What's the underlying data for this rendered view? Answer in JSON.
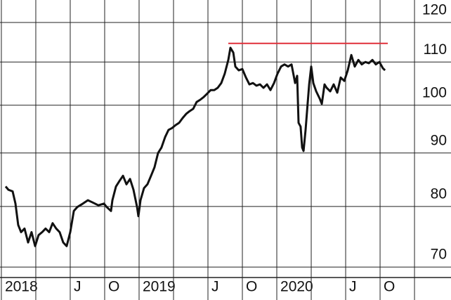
{
  "chart_data": {
    "type": "line",
    "log_scale": true,
    "grid": true,
    "xlim": [
      2017.99,
      2021.265
    ],
    "ylim": [
      68.4,
      126.1
    ],
    "yticks": [
      70,
      80,
      90,
      100,
      110,
      120
    ],
    "xticks": [
      {
        "value": 2018,
        "label": "2018"
      },
      {
        "value": 2018.25,
        "label": null
      },
      {
        "value": 2018.5,
        "label": "J"
      },
      {
        "value": 2018.75,
        "label": "O"
      },
      {
        "value": 2019,
        "label": "2019"
      },
      {
        "value": 2019.25,
        "label": null
      },
      {
        "value": 2019.5,
        "label": "J"
      },
      {
        "value": 2019.75,
        "label": "O"
      },
      {
        "value": 2020,
        "label": "2020"
      },
      {
        "value": 2020.25,
        "label": null
      },
      {
        "value": 2020.5,
        "label": "J"
      },
      {
        "value": 2020.75,
        "label": "O"
      },
      {
        "value": 2021,
        "label": null
      }
    ],
    "series": [
      {
        "color": "#111111",
        "x": [
          2018.031,
          2018.051,
          2018.082,
          2018.102,
          2018.122,
          2018.143,
          2018.168,
          2018.194,
          2018.219,
          2018.245,
          2018.27,
          2018.296,
          2018.321,
          2018.347,
          2018.372,
          2018.398,
          2018.423,
          2018.449,
          2018.474,
          2018.5,
          2018.526,
          2018.551,
          2018.592,
          2018.628,
          2018.663,
          2018.704,
          2018.745,
          2018.765,
          2018.796,
          2018.806,
          2018.832,
          2018.857,
          2018.883,
          2018.908,
          2018.934,
          2018.959,
          2018.985,
          2018.995,
          2019.01,
          2019.036,
          2019.061,
          2019.087,
          2019.112,
          2019.138,
          2019.163,
          2019.189,
          2019.214,
          2019.24,
          2019.265,
          2019.291,
          2019.316,
          2019.342,
          2019.367,
          2019.393,
          2019.418,
          2019.444,
          2019.469,
          2019.495,
          2019.52,
          2019.546,
          2019.571,
          2019.597,
          2019.622,
          2019.648,
          2019.663,
          2019.684,
          2019.699,
          2019.724,
          2019.75,
          2019.776,
          2019.801,
          2019.827,
          2019.852,
          2019.878,
          2019.903,
          2019.929,
          2019.954,
          2019.98,
          2020.005,
          2020.031,
          2020.056,
          2020.082,
          2020.107,
          2020.133,
          2020.148,
          2020.158,
          2020.173,
          2020.184,
          2020.194,
          2020.209,
          2020.224,
          2020.235,
          2020.25,
          2020.265,
          2020.286,
          2020.311,
          2020.327,
          2020.347,
          2020.362,
          2020.388,
          2020.413,
          2020.439,
          2020.464,
          2020.49,
          2020.515,
          2020.541,
          2020.566,
          2020.592,
          2020.617,
          2020.643,
          2020.668,
          2020.694,
          2020.719,
          2020.745,
          2020.77,
          2020.786
        ],
        "values": [
          83.6,
          83.0,
          82.7,
          80.5,
          76.8,
          75.6,
          76.2,
          73.9,
          75.6,
          73.3,
          75.1,
          75.6,
          76.2,
          75.6,
          77.1,
          76.2,
          75.6,
          73.9,
          73.3,
          75.6,
          79.2,
          79.9,
          80.5,
          81.1,
          80.7,
          80.2,
          80.5,
          79.9,
          79.2,
          81.1,
          83.6,
          84.6,
          85.6,
          84.0,
          85.0,
          83.0,
          79.9,
          78.3,
          81.1,
          83.3,
          84.0,
          85.6,
          87.2,
          90.0,
          91.1,
          93.2,
          94.7,
          95.1,
          95.7,
          96.2,
          97.2,
          98.1,
          98.7,
          99.2,
          100.7,
          101.2,
          101.8,
          102.6,
          103.4,
          103.4,
          103.9,
          105.0,
          107.2,
          110.5,
          113.5,
          112.3,
          108.9,
          108.0,
          108.3,
          106.3,
          104.7,
          105.0,
          104.4,
          104.7,
          103.9,
          104.7,
          103.4,
          105.0,
          107.2,
          108.9,
          109.4,
          108.9,
          109.4,
          105.0,
          106.7,
          96.2,
          95.4,
          91.1,
          90.4,
          94.7,
          100.3,
          104.7,
          108.9,
          105.0,
          103.1,
          101.5,
          100.3,
          104.7,
          103.9,
          103.1,
          104.7,
          102.8,
          106.3,
          105.5,
          108.0,
          111.7,
          108.9,
          110.5,
          109.4,
          110.0,
          109.7,
          110.5,
          109.4,
          110.0,
          108.5,
          108.0
        ]
      }
    ],
    "reference_line": {
      "x": [
        2019.648,
        2020.806
      ],
      "value": 114.6,
      "color": "#e0303a"
    }
  }
}
